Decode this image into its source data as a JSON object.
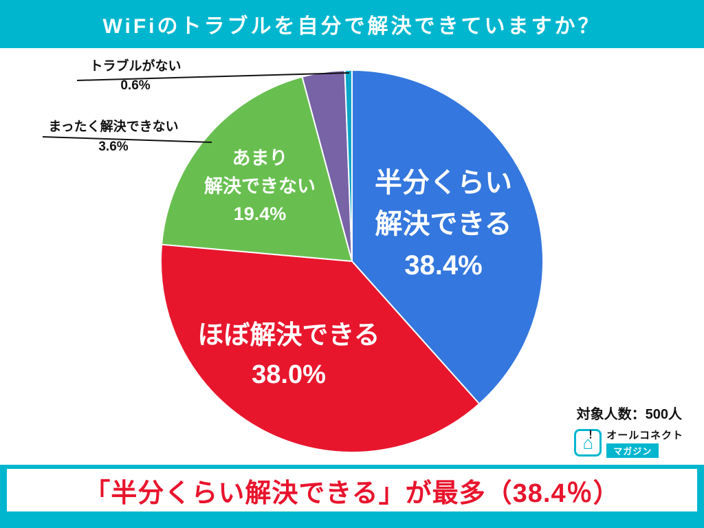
{
  "header": {
    "title": "WiFiのトラブルを自分で解決できていますか？"
  },
  "chart_data": {
    "type": "pie",
    "title": "WiFiのトラブルを自分で解決できていますか？",
    "start_angle_deg": 0,
    "direction": "clockwise",
    "unit": "%",
    "slices": [
      {
        "label": "半分くらい解決できる",
        "label_lines": [
          "半分くらい",
          "解決できる"
        ],
        "value": 38.4,
        "pct_label": "38.4%",
        "color": "#3477de",
        "label_placement": "inside"
      },
      {
        "label": "ほぼ解決できる",
        "label_lines": [
          "ほぼ解決できる"
        ],
        "value": 38.0,
        "pct_label": "38.0%",
        "color": "#e8162d",
        "label_placement": "inside"
      },
      {
        "label": "あまり解決できない",
        "label_lines": [
          "あまり",
          "解決できない"
        ],
        "value": 19.4,
        "pct_label": "19.4%",
        "color": "#68bf50",
        "label_placement": "inside"
      },
      {
        "label": "まったく解決できない",
        "label_lines": [
          "まったく解決できない"
        ],
        "value": 3.6,
        "pct_label": "3.6%",
        "color": "#7763a6",
        "label_placement": "outside"
      },
      {
        "label": "トラブルがない",
        "label_lines": [
          "トラブルがない"
        ],
        "value": 0.6,
        "pct_label": "0.6%",
        "color": "#0aa7c9",
        "label_placement": "outside"
      }
    ]
  },
  "meta": {
    "sample_size_label": "対象人数：500人"
  },
  "logo": {
    "line1": "オールコネクト",
    "line2": "マガジン",
    "icon_glyph": "⌂",
    "bang": "！"
  },
  "footer": {
    "headline": "「半分くらい解決できる」が最多（38.4％）"
  },
  "colors": {
    "accent_cyan": "#00b6cf",
    "headline_red": "#e8142d"
  }
}
